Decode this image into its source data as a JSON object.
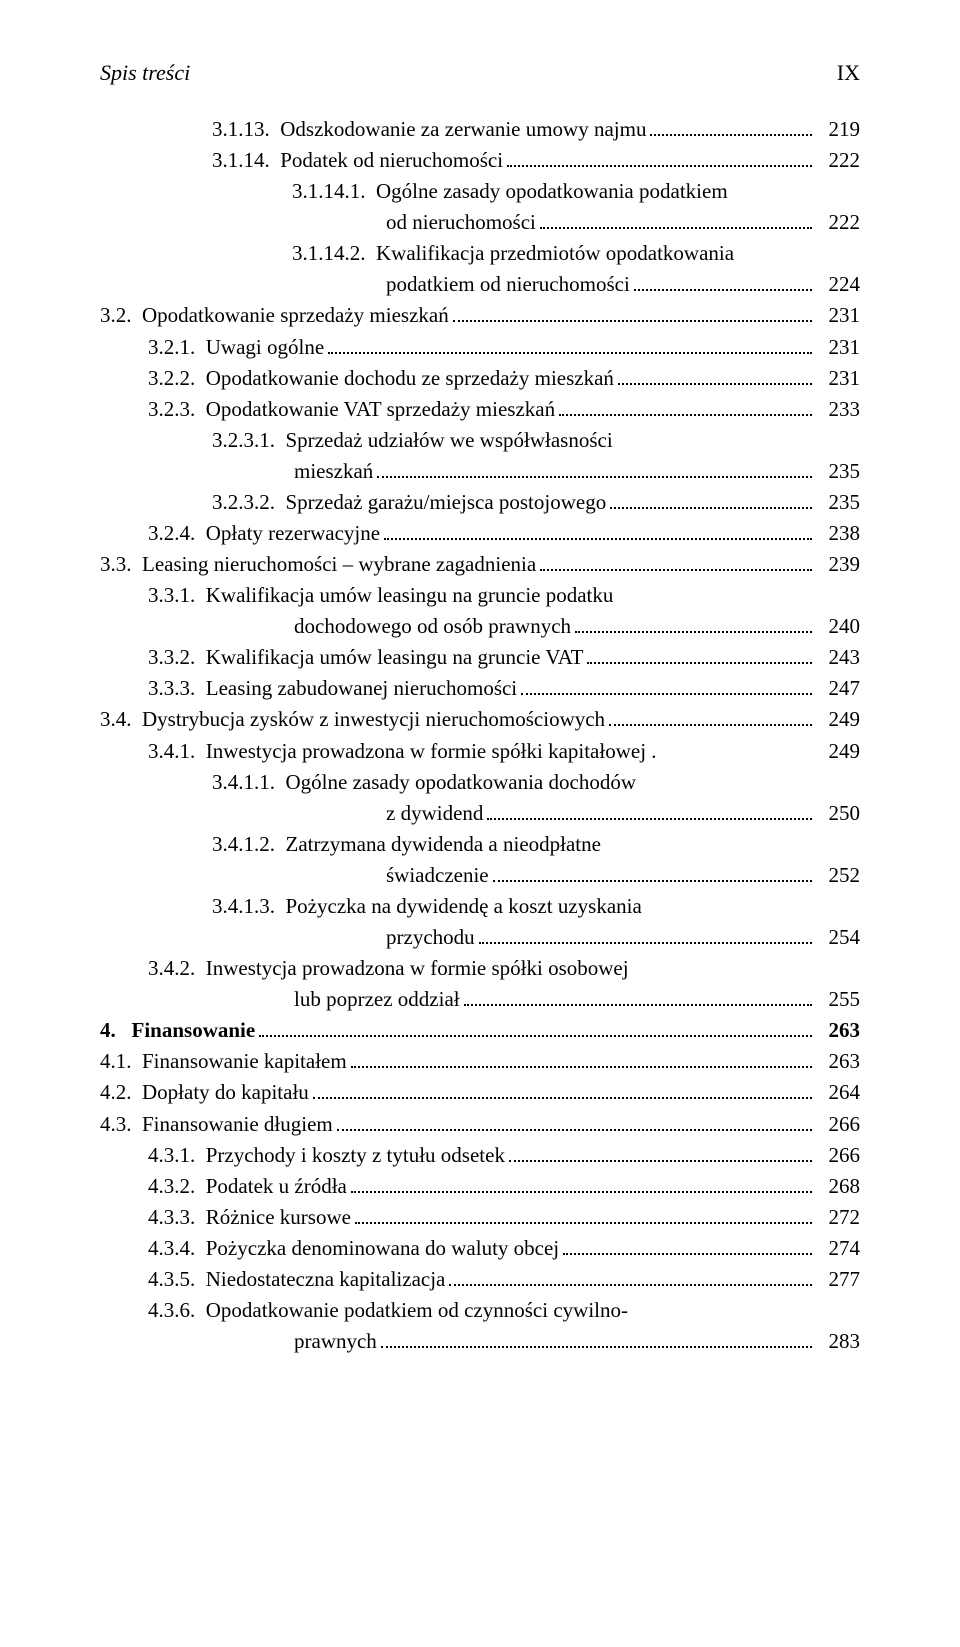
{
  "header": {
    "title": "Spis treści",
    "pagenum": "IX"
  },
  "lines": [
    {
      "indent": "ind2",
      "num": "3.1.13.",
      "text": "Odszkodowanie za zerwanie umowy najmu",
      "page": "219"
    },
    {
      "indent": "ind2",
      "num": "3.1.14.",
      "text": "Podatek od nieruchomości",
      "page": "222"
    },
    {
      "indent": "ind3",
      "num": "3.1.14.1.",
      "text": "Ogólne zasady opodatkowania podatkiem",
      "cont": true,
      "contIndent": "txtind3",
      "contText": "od nieruchomości",
      "page": "222"
    },
    {
      "indent": "ind3",
      "num": "3.1.14.2.",
      "text": "Kwalifikacja przedmiotów opodatkowania",
      "cont": true,
      "contIndent": "txtind3",
      "contText": "podatkiem od nieruchomości",
      "page": "224"
    },
    {
      "indent": "ind0",
      "num": "3.2.",
      "text": "Opodatkowanie sprzedaży mieszkań",
      "page": "231"
    },
    {
      "indent": "ind1",
      "num": "3.2.1.",
      "text": "Uwagi ogólne",
      "page": "231"
    },
    {
      "indent": "ind1",
      "num": "3.2.2.",
      "text": "Opodatkowanie dochodu ze sprzedaży mieszkań",
      "page": "231"
    },
    {
      "indent": "ind1",
      "num": "3.2.3.",
      "text": "Opodatkowanie VAT sprzedaży mieszkań",
      "page": "233"
    },
    {
      "indent": "ind2",
      "num": "3.2.3.1.",
      "text": "Sprzedaż udziałów we współwłasności",
      "cont": true,
      "contIndent": "txtind2",
      "contText": "mieszkań",
      "page": "235"
    },
    {
      "indent": "ind2",
      "num": "3.2.3.2.",
      "text": "Sprzedaż garażu/miejsca postojowego",
      "page": "235"
    },
    {
      "indent": "ind1",
      "num": "3.2.4.",
      "text": "Opłaty rezerwacyjne",
      "page": "238"
    },
    {
      "indent": "ind0",
      "num": "3.3.",
      "text": "Leasing nieruchomości – wybrane zagadnienia",
      "page": "239"
    },
    {
      "indent": "ind1",
      "num": "3.3.1.",
      "text": "Kwalifikacja umów leasingu na gruncie podatku",
      "cont": true,
      "contIndent": "txtind2",
      "contText": "dochodowego od osób prawnych",
      "page": "240"
    },
    {
      "indent": "ind1",
      "num": "3.3.2.",
      "text": "Kwalifikacja umów leasingu na gruncie VAT",
      "page": "243"
    },
    {
      "indent": "ind1",
      "num": "3.3.3.",
      "text": "Leasing zabudowanej nieruchomości",
      "page": "247"
    },
    {
      "indent": "ind0",
      "num": "3.4.",
      "text": "Dystrybucja zysków z inwestycji nieruchomościowych",
      "page": "249"
    },
    {
      "indent": "ind1",
      "num": "3.4.1.",
      "text": "Inwestycja prowadzona w formie spółki kapitałowej .",
      "page": "249",
      "nodots": true
    },
    {
      "indent": "ind2",
      "num": "3.4.1.1.",
      "text": "Ogólne zasady opodatkowania dochodów",
      "cont": true,
      "contIndent": "txtind3",
      "contText": "z dywidend",
      "page": "250"
    },
    {
      "indent": "ind2",
      "num": "3.4.1.2.",
      "text": "Zatrzymana dywidenda a nieodpłatne",
      "cont": true,
      "contIndent": "txtind3",
      "contText": "świadczenie",
      "page": "252"
    },
    {
      "indent": "ind2",
      "num": "3.4.1.3.",
      "text": "Pożyczka na dywidendę a koszt uzyskania",
      "cont": true,
      "contIndent": "txtind3",
      "contText": "przychodu",
      "page": "254"
    },
    {
      "indent": "ind1",
      "num": "3.4.2.",
      "text": "Inwestycja prowadzona w formie spółki osobowej",
      "cont": true,
      "contIndent": "txtind2",
      "contText": "lub poprzez oddział",
      "page": "255"
    },
    {
      "indent": "ind0",
      "num": "4. ",
      "text": "Finansowanie",
      "page": "263",
      "bold": true
    },
    {
      "indent": "ind0",
      "num": "4.1.",
      "text": "Finansowanie kapitałem",
      "page": "263"
    },
    {
      "indent": "ind0",
      "num": "4.2.",
      "text": "Dopłaty do kapitału",
      "page": "264"
    },
    {
      "indent": "ind0",
      "num": "4.3.",
      "text": "Finansowanie długiem",
      "page": "266"
    },
    {
      "indent": "ind1",
      "num": "4.3.1.",
      "text": "Przychody i koszty z tytułu odsetek",
      "page": "266"
    },
    {
      "indent": "ind1",
      "num": "4.3.2.",
      "text": "Podatek u źródła",
      "page": "268"
    },
    {
      "indent": "ind1",
      "num": "4.3.3.",
      "text": "Różnice kursowe",
      "page": "272"
    },
    {
      "indent": "ind1",
      "num": "4.3.4.",
      "text": "Pożyczka denominowana do waluty obcej",
      "page": "274"
    },
    {
      "indent": "ind1",
      "num": "4.3.5.",
      "text": "Niedostateczna kapitalizacja",
      "page": "277"
    },
    {
      "indent": "ind1",
      "num": "4.3.6.",
      "text": "Opodatkowanie podatkiem od czynności cywilno-",
      "cont": true,
      "contIndent": "txtind2",
      "contText": "prawnych",
      "page": "283"
    }
  ]
}
